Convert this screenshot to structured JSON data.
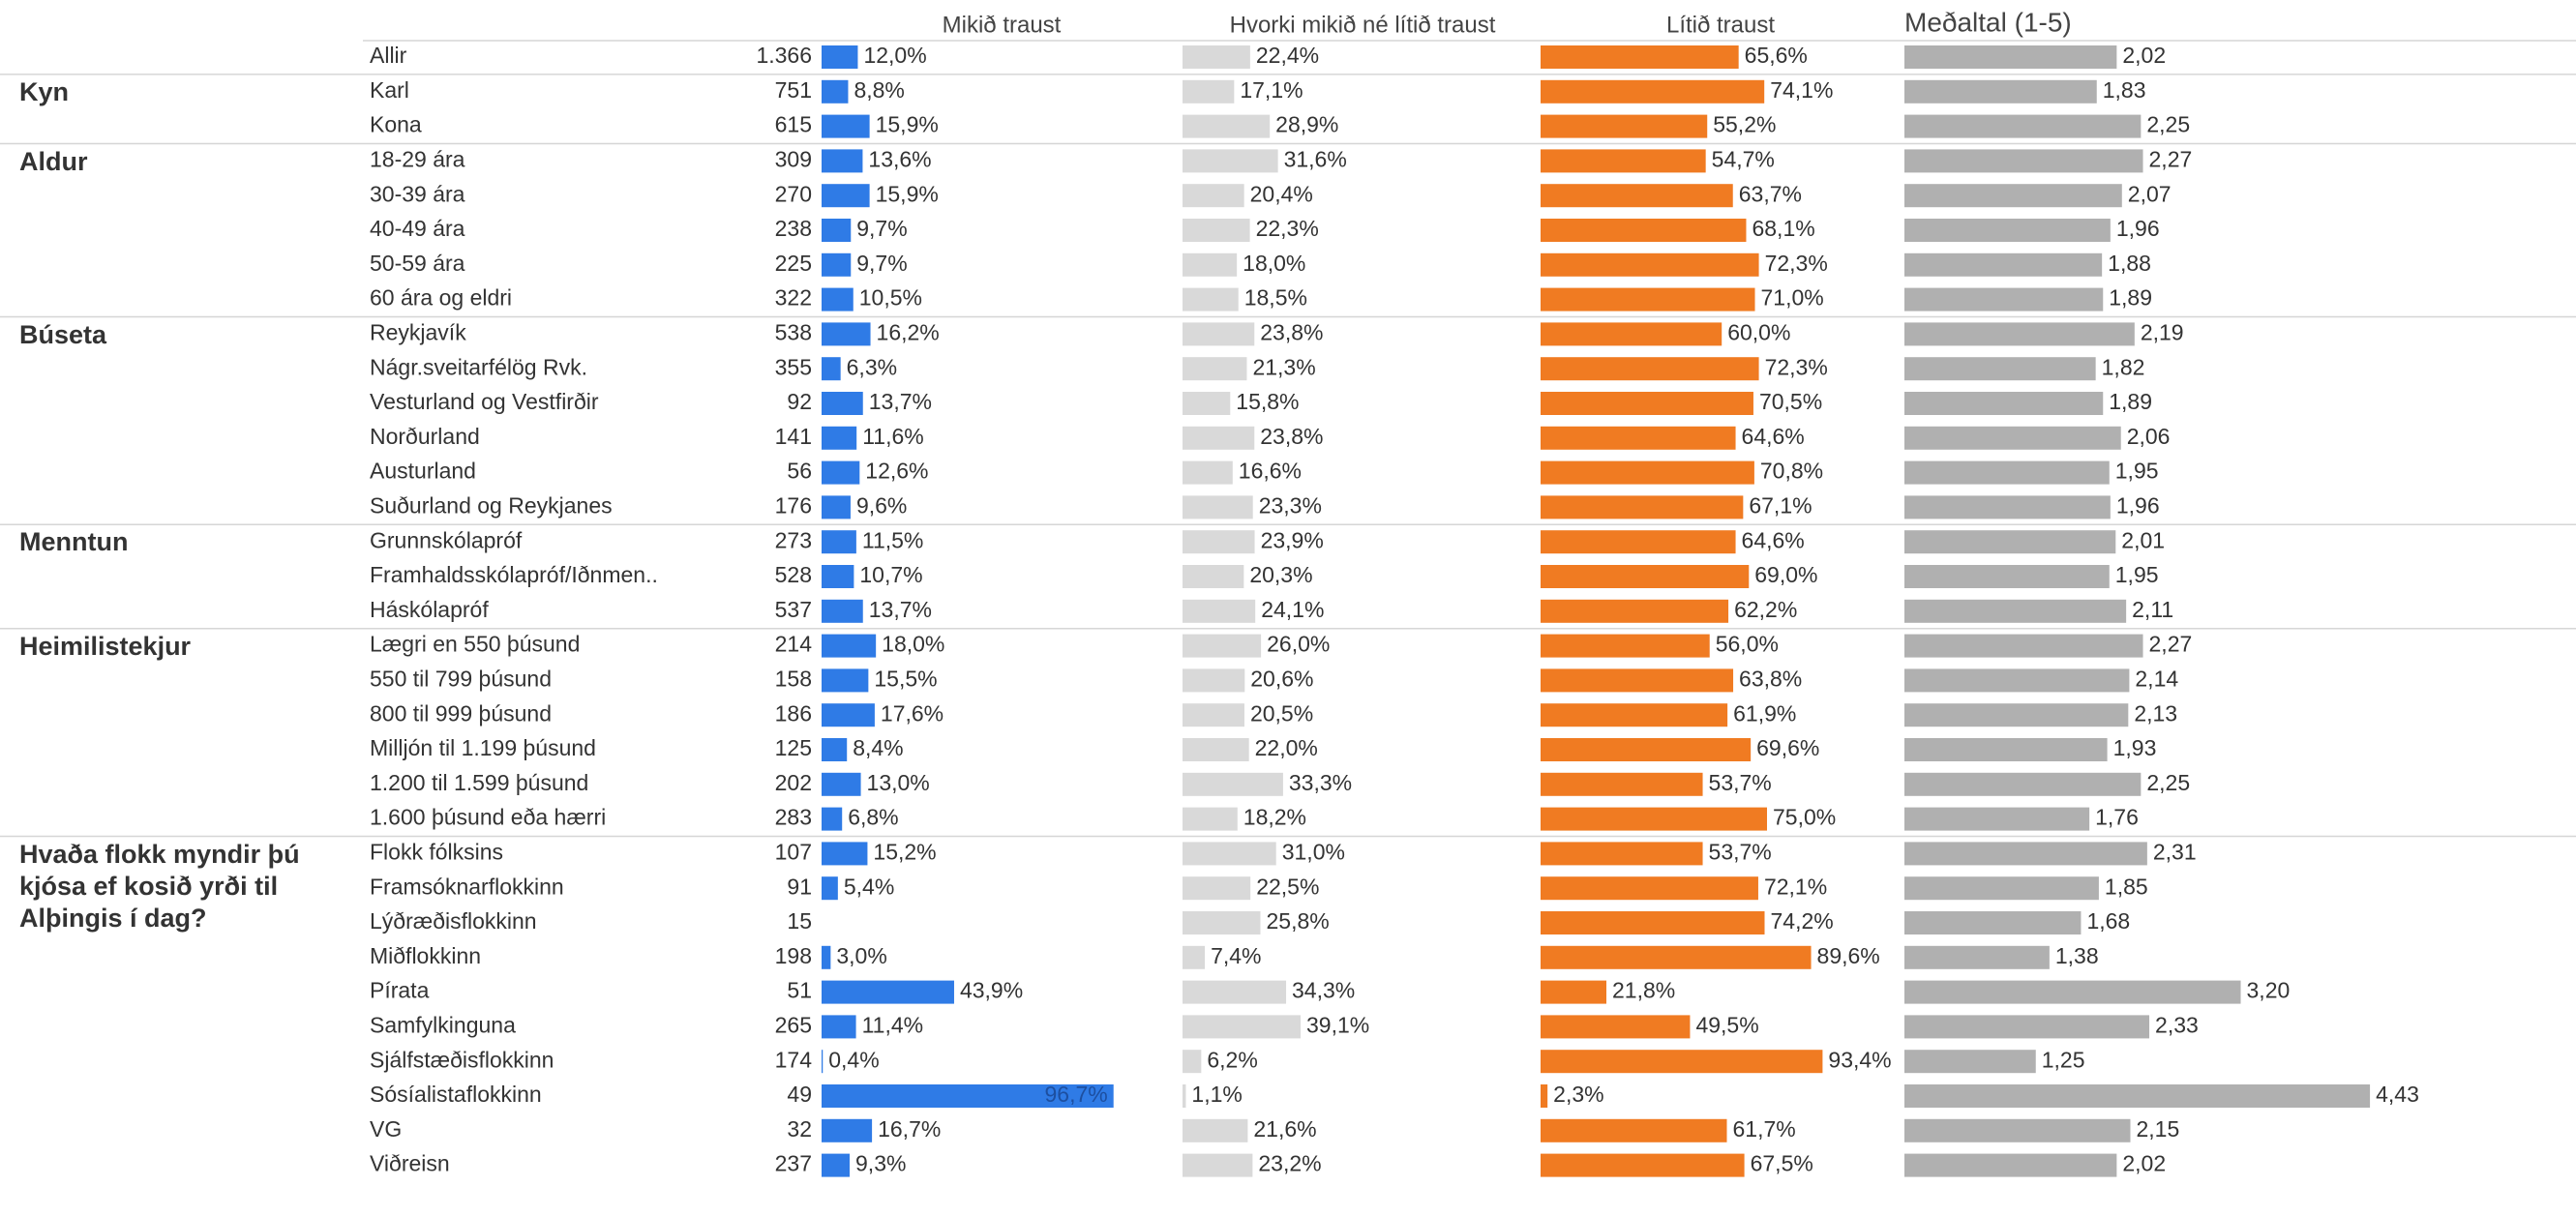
{
  "chart_data": {
    "type": "bar",
    "series": [
      {
        "name": "Mikið traust",
        "color": "#2f7be6",
        "xlim": [
          0,
          100
        ]
      },
      {
        "name": "Hvorki mikið né lítið traust",
        "color": "#d9d9d9",
        "xlim": [
          0,
          100
        ]
      },
      {
        "name": "Lítið traust",
        "color": "#f07b22",
        "xlim": [
          0,
          100
        ]
      },
      {
        "name": "Meðaltal (1-5)",
        "color": "#b0b0b0",
        "xlim": [
          0,
          5
        ]
      }
    ],
    "groups": [
      {
        "label": null,
        "rows": [
          {
            "category": "Allir",
            "n": 1366,
            "n_label": "1.366",
            "values": [
              12.0,
              22.4,
              65.6,
              2.02
            ],
            "value_labels": [
              "12,0%",
              "22,4%",
              "65,6%",
              "2,02"
            ]
          }
        ]
      },
      {
        "label": "Kyn",
        "rows": [
          {
            "category": "Karl",
            "n": 751,
            "values": [
              8.8,
              17.1,
              74.1,
              1.83
            ],
            "value_labels": [
              "8,8%",
              "17,1%",
              "74,1%",
              "1,83"
            ]
          },
          {
            "category": "Kona",
            "n": 615,
            "values": [
              15.9,
              28.9,
              55.2,
              2.25
            ],
            "value_labels": [
              "15,9%",
              "28,9%",
              "55,2%",
              "2,25"
            ]
          }
        ]
      },
      {
        "label": "Aldur",
        "rows": [
          {
            "category": "18-29 ára",
            "n": 309,
            "values": [
              13.6,
              31.6,
              54.7,
              2.27
            ],
            "value_labels": [
              "13,6%",
              "31,6%",
              "54,7%",
              "2,27"
            ]
          },
          {
            "category": "30-39 ára",
            "n": 270,
            "values": [
              15.9,
              20.4,
              63.7,
              2.07
            ],
            "value_labels": [
              "15,9%",
              "20,4%",
              "63,7%",
              "2,07"
            ]
          },
          {
            "category": "40-49 ára",
            "n": 238,
            "values": [
              9.7,
              22.3,
              68.1,
              1.96
            ],
            "value_labels": [
              "9,7%",
              "22,3%",
              "68,1%",
              "1,96"
            ]
          },
          {
            "category": "50-59 ára",
            "n": 225,
            "values": [
              9.7,
              18.0,
              72.3,
              1.88
            ],
            "value_labels": [
              "9,7%",
              "18,0%",
              "72,3%",
              "1,88"
            ]
          },
          {
            "category": "60 ára og eldri",
            "n": 322,
            "values": [
              10.5,
              18.5,
              71.0,
              1.89
            ],
            "value_labels": [
              "10,5%",
              "18,5%",
              "71,0%",
              "1,89"
            ]
          }
        ]
      },
      {
        "label": "Búseta",
        "rows": [
          {
            "category": "Reykjavík",
            "n": 538,
            "values": [
              16.2,
              23.8,
              60.0,
              2.19
            ],
            "value_labels": [
              "16,2%",
              "23,8%",
              "60,0%",
              "2,19"
            ]
          },
          {
            "category": "Nágr.sveitarfélög Rvk.",
            "n": 355,
            "values": [
              6.3,
              21.3,
              72.3,
              1.82
            ],
            "value_labels": [
              "6,3%",
              "21,3%",
              "72,3%",
              "1,82"
            ]
          },
          {
            "category": "Vesturland og Vestfirðir",
            "n": 92,
            "values": [
              13.7,
              15.8,
              70.5,
              1.89
            ],
            "value_labels": [
              "13,7%",
              "15,8%",
              "70,5%",
              "1,89"
            ]
          },
          {
            "category": "Norðurland",
            "n": 141,
            "values": [
              11.6,
              23.8,
              64.6,
              2.06
            ],
            "value_labels": [
              "11,6%",
              "23,8%",
              "64,6%",
              "2,06"
            ]
          },
          {
            "category": "Austurland",
            "n": 56,
            "values": [
              12.6,
              16.6,
              70.8,
              1.95
            ],
            "value_labels": [
              "12,6%",
              "16,6%",
              "70,8%",
              "1,95"
            ]
          },
          {
            "category": "Suðurland og Reykjanes",
            "n": 176,
            "values": [
              9.6,
              23.3,
              67.1,
              1.96
            ],
            "value_labels": [
              "9,6%",
              "23,3%",
              "67,1%",
              "1,96"
            ]
          }
        ]
      },
      {
        "label": "Menntun",
        "rows": [
          {
            "category": "Grunnskólapróf",
            "n": 273,
            "values": [
              11.5,
              23.9,
              64.6,
              2.01
            ],
            "value_labels": [
              "11,5%",
              "23,9%",
              "64,6%",
              "2,01"
            ]
          },
          {
            "category": "Framhaldsskólapróf/Iðnmen..",
            "n": 528,
            "values": [
              10.7,
              20.3,
              69.0,
              1.95
            ],
            "value_labels": [
              "10,7%",
              "20,3%",
              "69,0%",
              "1,95"
            ]
          },
          {
            "category": "Háskólapróf",
            "n": 537,
            "values": [
              13.7,
              24.1,
              62.2,
              2.11
            ],
            "value_labels": [
              "13,7%",
              "24,1%",
              "62,2%",
              "2,11"
            ]
          }
        ]
      },
      {
        "label": "Heimilistekjur",
        "rows": [
          {
            "category": "Lægri en 550 þúsund",
            "n": 214,
            "values": [
              18.0,
              26.0,
              56.0,
              2.27
            ],
            "value_labels": [
              "18,0%",
              "26,0%",
              "56,0%",
              "2,27"
            ]
          },
          {
            "category": "550 til 799 þúsund",
            "n": 158,
            "values": [
              15.5,
              20.6,
              63.8,
              2.14
            ],
            "value_labels": [
              "15,5%",
              "20,6%",
              "63,8%",
              "2,14"
            ]
          },
          {
            "category": "800 til 999 þúsund",
            "n": 186,
            "values": [
              17.6,
              20.5,
              61.9,
              2.13
            ],
            "value_labels": [
              "17,6%",
              "20,5%",
              "61,9%",
              "2,13"
            ]
          },
          {
            "category": "Milljón til 1.199 þúsund",
            "n": 125,
            "values": [
              8.4,
              22.0,
              69.6,
              1.93
            ],
            "value_labels": [
              "8,4%",
              "22,0%",
              "69,6%",
              "1,93"
            ]
          },
          {
            "category": "1.200 til 1.599 þúsund",
            "n": 202,
            "values": [
              13.0,
              33.3,
              53.7,
              2.25
            ],
            "value_labels": [
              "13,0%",
              "33,3%",
              "53,7%",
              "2,25"
            ]
          },
          {
            "category": "1.600 þúsund eða hærri",
            "n": 283,
            "values": [
              6.8,
              18.2,
              75.0,
              1.76
            ],
            "value_labels": [
              "6,8%",
              "18,2%",
              "75,0%",
              "1,76"
            ]
          }
        ]
      },
      {
        "label": "Hvaða flokk myndir þú kjósa ef kosið yrði til Alþingis í dag?",
        "rows": [
          {
            "category": "Flokk fólksins",
            "n": 107,
            "values": [
              15.2,
              31.0,
              53.7,
              2.31
            ],
            "value_labels": [
              "15,2%",
              "31,0%",
              "53,7%",
              "2,31"
            ]
          },
          {
            "category": "Framsóknarflokkinn",
            "n": 91,
            "values": [
              5.4,
              22.5,
              72.1,
              1.85
            ],
            "value_labels": [
              "5,4%",
              "22,5%",
              "72,1%",
              "1,85"
            ]
          },
          {
            "category": "Lýðræðisflokkinn",
            "n": 15,
            "values": [
              null,
              25.8,
              74.2,
              1.68
            ],
            "value_labels": [
              null,
              "25,8%",
              "74,2%",
              "1,68"
            ]
          },
          {
            "category": "Miðflokkinn",
            "n": 198,
            "values": [
              3.0,
              7.4,
              89.6,
              1.38
            ],
            "value_labels": [
              "3,0%",
              "7,4%",
              "89,6%",
              "1,38"
            ]
          },
          {
            "category": "Pírata",
            "n": 51,
            "values": [
              43.9,
              34.3,
              21.8,
              3.2
            ],
            "value_labels": [
              "43,9%",
              "34,3%",
              "21,8%",
              "3,20"
            ]
          },
          {
            "category": "Samfylkinguna",
            "n": 265,
            "values": [
              11.4,
              39.1,
              49.5,
              2.33
            ],
            "value_labels": [
              "11,4%",
              "39,1%",
              "49,5%",
              "2,33"
            ]
          },
          {
            "category": "Sjálfstæðisflokkinn",
            "n": 174,
            "values": [
              0.4,
              6.2,
              93.4,
              1.25
            ],
            "value_labels": [
              "0,4%",
              "6,2%",
              "93,4%",
              "1,25"
            ]
          },
          {
            "category": "Sósíalistaflokkinn",
            "n": 49,
            "values": [
              96.7,
              1.1,
              2.3,
              4.43
            ],
            "value_labels": [
              "96,7%",
              "1,1%",
              "2,3%",
              "4,43"
            ]
          },
          {
            "category": "VG",
            "n": 32,
            "values": [
              16.7,
              21.6,
              61.7,
              2.15
            ],
            "value_labels": [
              "16,7%",
              "21,6%",
              "61,7%",
              "2,15"
            ]
          },
          {
            "category": "Viðreisn",
            "n": 237,
            "values": [
              9.3,
              23.2,
              67.5,
              2.02
            ],
            "value_labels": [
              "9,3%",
              "23,2%",
              "67,5%",
              "2,02"
            ]
          }
        ]
      }
    ]
  }
}
